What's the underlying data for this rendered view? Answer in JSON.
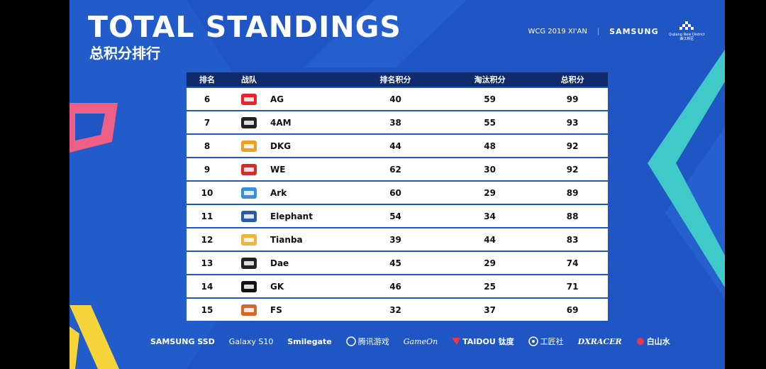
{
  "header": {
    "title": "TOTAL STANDINGS",
    "subtitle": "总积分排行",
    "event": "WCG 2019 XI'AN",
    "samsung": "SAMSUNG",
    "gq_en": "Qujiang New District",
    "gq_cn": "曲江新区"
  },
  "table": {
    "columns": [
      "排名",
      "战队",
      "排名积分",
      "淘汰积分",
      "总积分"
    ],
    "rows": [
      {
        "rank": "6",
        "team": "AG",
        "logo": "ag-logo",
        "placement": "40",
        "kills": "59",
        "total": "99"
      },
      {
        "rank": "7",
        "team": "4AM",
        "logo": "4am-logo",
        "placement": "38",
        "kills": "55",
        "total": "93"
      },
      {
        "rank": "8",
        "team": "DKG",
        "logo": "dkg-logo",
        "placement": "44",
        "kills": "48",
        "total": "92"
      },
      {
        "rank": "9",
        "team": "WE",
        "logo": "we-logo",
        "placement": "62",
        "kills": "30",
        "total": "92"
      },
      {
        "rank": "10",
        "team": "Ark",
        "logo": "ark-logo",
        "placement": "60",
        "kills": "29",
        "total": "89"
      },
      {
        "rank": "11",
        "team": "Elephant",
        "logo": "elephant-logo",
        "placement": "54",
        "kills": "34",
        "total": "88"
      },
      {
        "rank": "12",
        "team": "Tianba",
        "logo": "tianba-logo",
        "placement": "39",
        "kills": "44",
        "total": "83"
      },
      {
        "rank": "13",
        "team": "Dae",
        "logo": "dae-logo",
        "placement": "45",
        "kills": "29",
        "total": "74"
      },
      {
        "rank": "14",
        "team": "GK",
        "logo": "gk-logo",
        "placement": "46",
        "kills": "25",
        "total": "71"
      },
      {
        "rank": "15",
        "team": "FS",
        "logo": "fs-logo",
        "placement": "32",
        "kills": "37",
        "total": "69"
      }
    ]
  },
  "sponsors": {
    "samsung_ssd": "SAMSUNG SSD",
    "galaxy": "Galaxy S10",
    "smilegate": "Smilegate",
    "tencent": "腾讯游戏",
    "gameon": "GameOn",
    "taidou": "TAIDOU 钛度",
    "gjrobot": "工匠社",
    "dxracer": "DXRACER",
    "baishanshui": "白山水"
  },
  "colors": {
    "background": "#1f56c4",
    "header_row": "#0f2b6b",
    "row": "#ffffff",
    "accent_pink": "#ee5f86",
    "accent_yellow": "#f7d43a",
    "accent_teal": "#3fc9c9"
  }
}
